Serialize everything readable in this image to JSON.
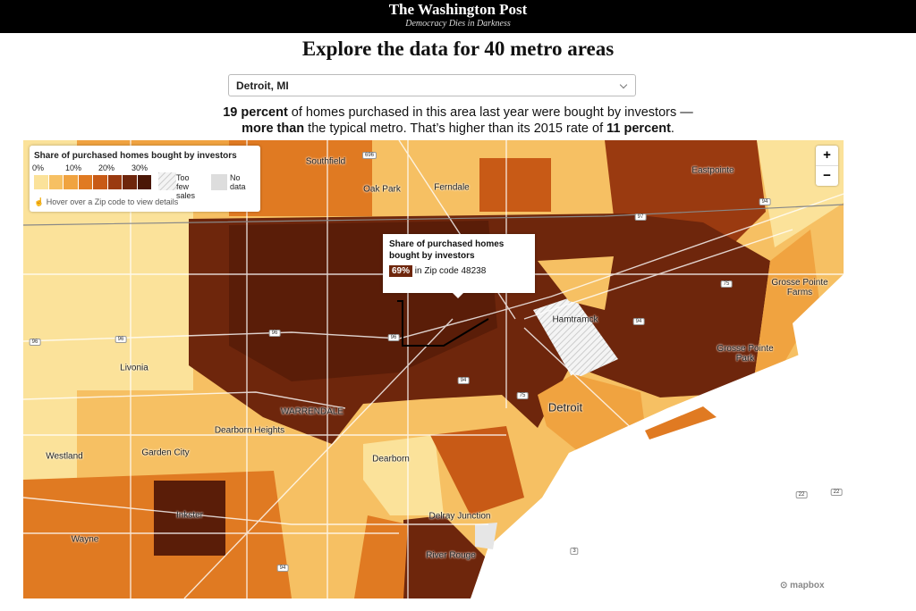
{
  "header": {
    "logo": "The Washington Post",
    "tagline": "Democracy Dies in Darkness"
  },
  "title": "Explore the data for 40 metro areas",
  "dropdown": {
    "selected": "Detroit, MI"
  },
  "summary": {
    "parts": [
      {
        "text": "19 percent",
        "bold": true
      },
      {
        "text": " of homes purchased in this area last year were bought by investors —",
        "bold": false
      },
      {
        "text": "more than",
        "bold": true,
        "newline": true
      },
      {
        "text": " the typical metro. That’s higher than its 2015 rate of ",
        "bold": false
      },
      {
        "text": "11 percent",
        "bold": true
      },
      {
        "text": ".",
        "bold": false
      }
    ]
  },
  "legend": {
    "title": "Share of purchased homes bought by investors",
    "ticks": [
      "0%",
      "10%",
      "20%",
      "30%"
    ],
    "colors": [
      "#fbe29a",
      "#f6c063",
      "#f0a340",
      "#e07a22",
      "#c85a16",
      "#9a3a10",
      "#6e260c",
      "#4a1706"
    ],
    "too_few": "Too few sales",
    "no_data": "No data",
    "hint": "Hover over a Zip code to view details"
  },
  "tooltip": {
    "title": "Share of purchased homes bought by investors",
    "value": "69%",
    "text": "in Zip code 48238"
  },
  "zoom": {
    "in": "+",
    "out": "−"
  },
  "map": {
    "places": [
      "Southfield",
      "Oak Park",
      "Ferndale",
      "Eastpointe",
      "Grosse Pointe Farms",
      "Hamtramck",
      "Livonia",
      "Grosse Pointe Park",
      "Detroit",
      "WARRENDALE",
      "Dearborn Heights",
      "Garden City",
      "Westland",
      "Dearborn",
      "Inkster",
      "Wayne",
      "Delray Junction",
      "River Rouge"
    ],
    "shields": [
      "696",
      "97",
      "94",
      "75",
      "94",
      "96",
      "96",
      "96",
      "96",
      "94",
      "75",
      "3",
      "22",
      "22",
      "94"
    ],
    "attribution": "mapbox"
  }
}
